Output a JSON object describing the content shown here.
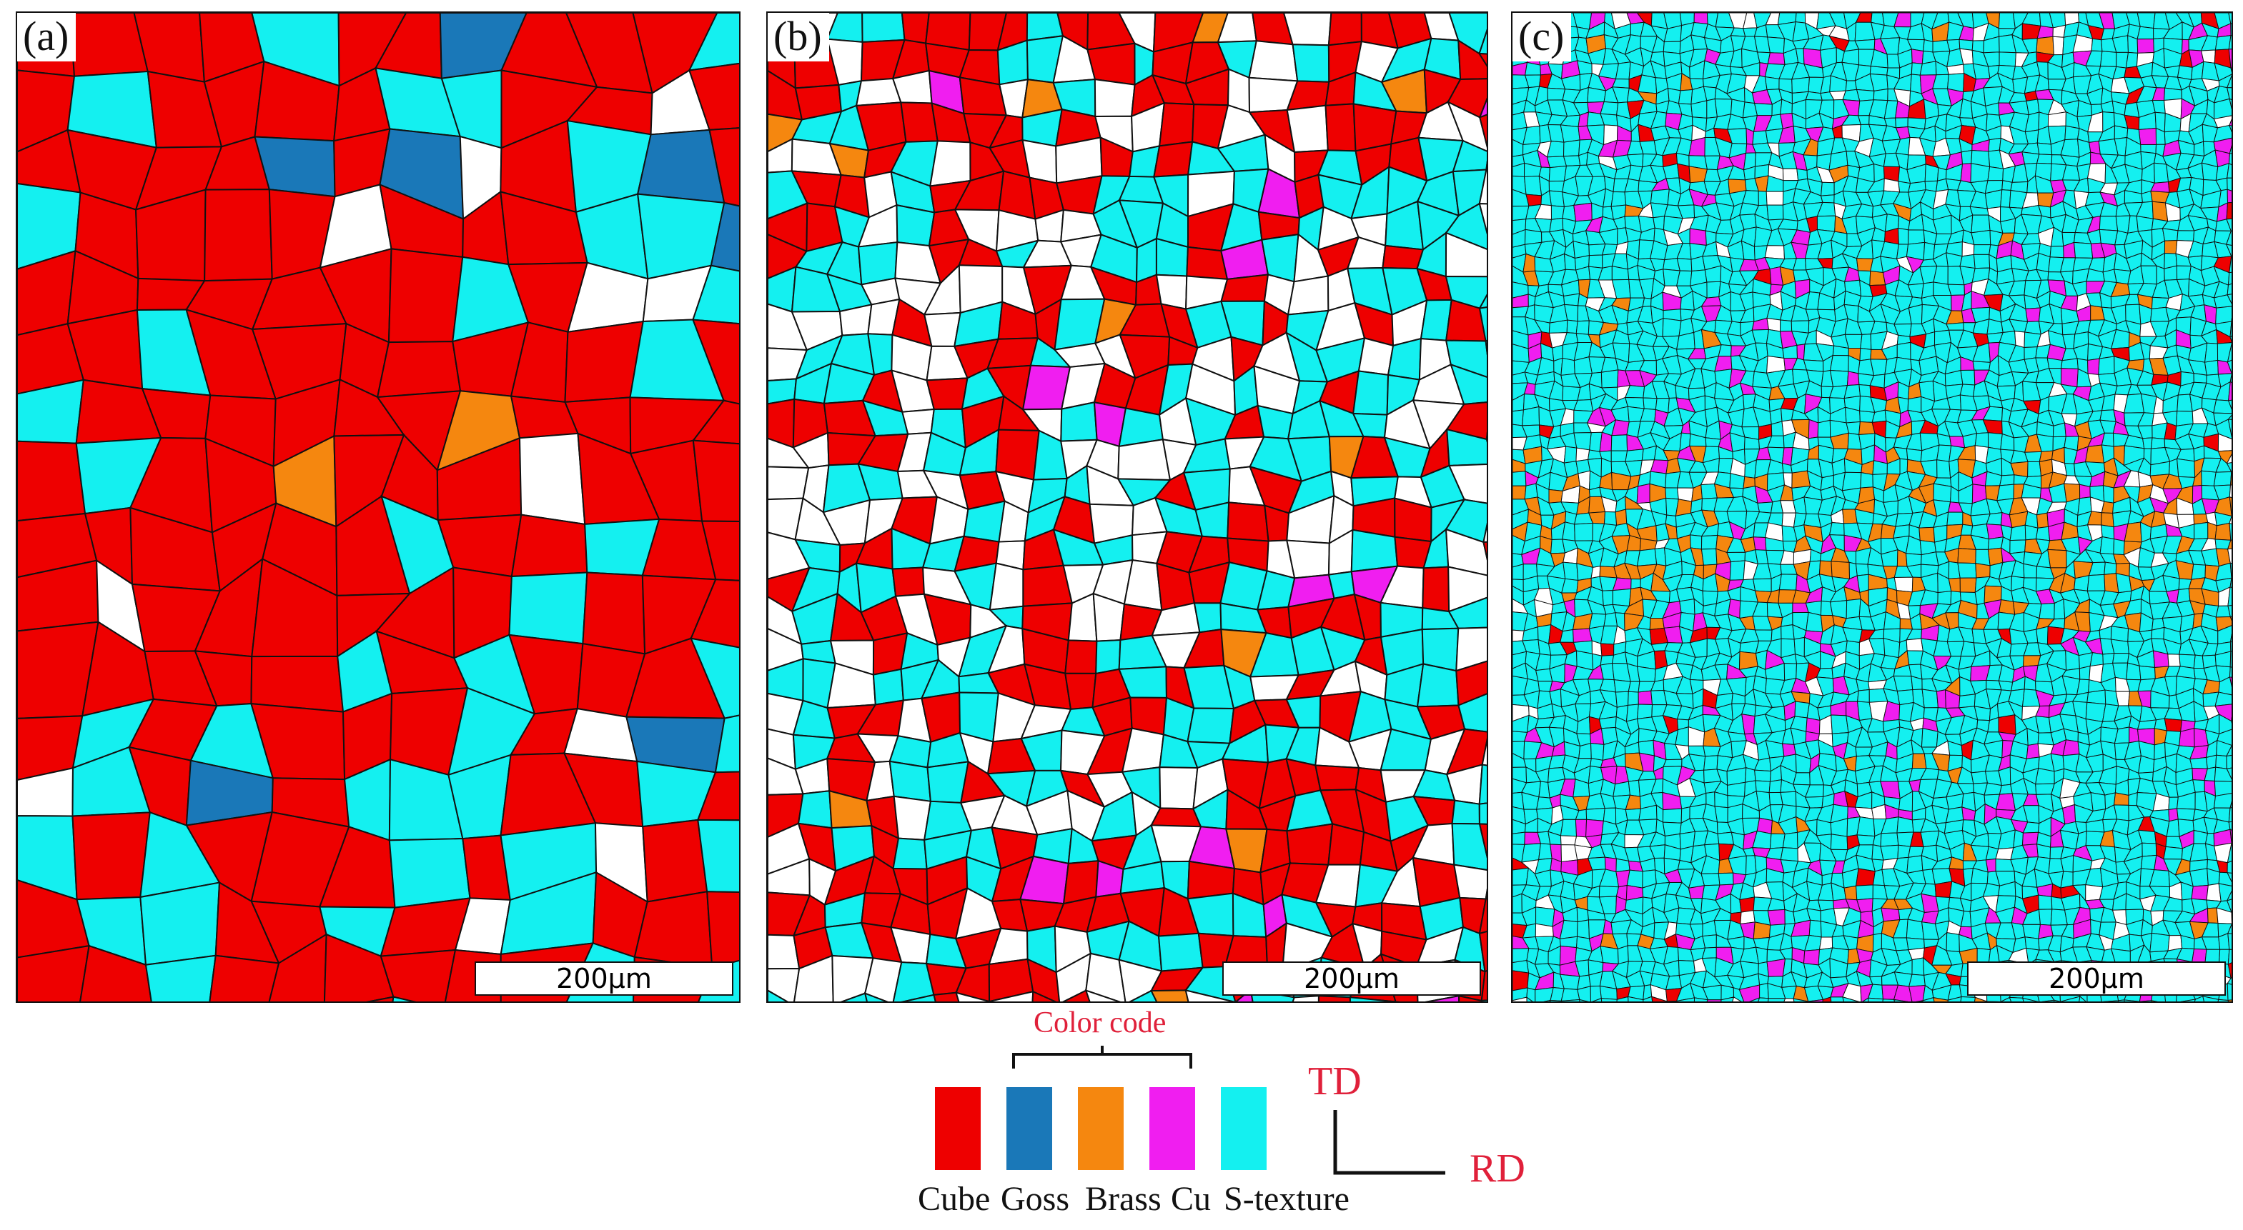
{
  "panels": [
    {
      "label": "(a)",
      "scale_bar": "200µm",
      "dominant": "Cube"
    },
    {
      "label": "(b)",
      "scale_bar": "200µm",
      "dominant": "mixed"
    },
    {
      "label": "(c)",
      "scale_bar": "200µm",
      "dominant": "S-texture"
    }
  ],
  "legend": {
    "title": "Color code",
    "items": [
      {
        "name": "Cube",
        "color": "#ee0000"
      },
      {
        "name": "Goss",
        "color": "#1a78b8"
      },
      {
        "name": "Brass",
        "color": "#f5870f"
      },
      {
        "name": "Cu",
        "color": "#f01ef0"
      },
      {
        "name": "S-texture",
        "color": "#14f0f0"
      }
    ]
  },
  "axes": {
    "td": "TD",
    "rd": "RD"
  },
  "colors": {
    "grain_boundary": "#111111",
    "unclassified": "#ffffff",
    "annotation_red": "#e0203a"
  }
}
